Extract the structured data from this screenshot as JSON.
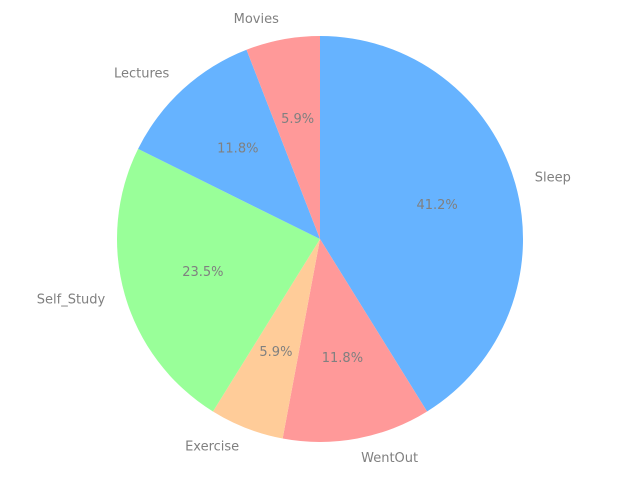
{
  "chart_data": {
    "type": "pie",
    "categories": [
      "Sleep",
      "WentOut",
      "Exercise",
      "Self_Study",
      "Lectures",
      "Movies"
    ],
    "values": [
      41.2,
      11.8,
      5.9,
      23.5,
      11.8,
      5.9
    ],
    "value_labels": [
      "41.2%",
      "11.8%",
      "5.9%",
      "23.5%",
      "11.8%",
      "5.9%"
    ],
    "colors": [
      "#66b3ff",
      "#ff9999",
      "#ffcc99",
      "#99ff99",
      "#66b3ff",
      "#ff9999"
    ],
    "start": "12 o'clock",
    "direction": "clockwise",
    "title": "",
    "legend": "none"
  }
}
